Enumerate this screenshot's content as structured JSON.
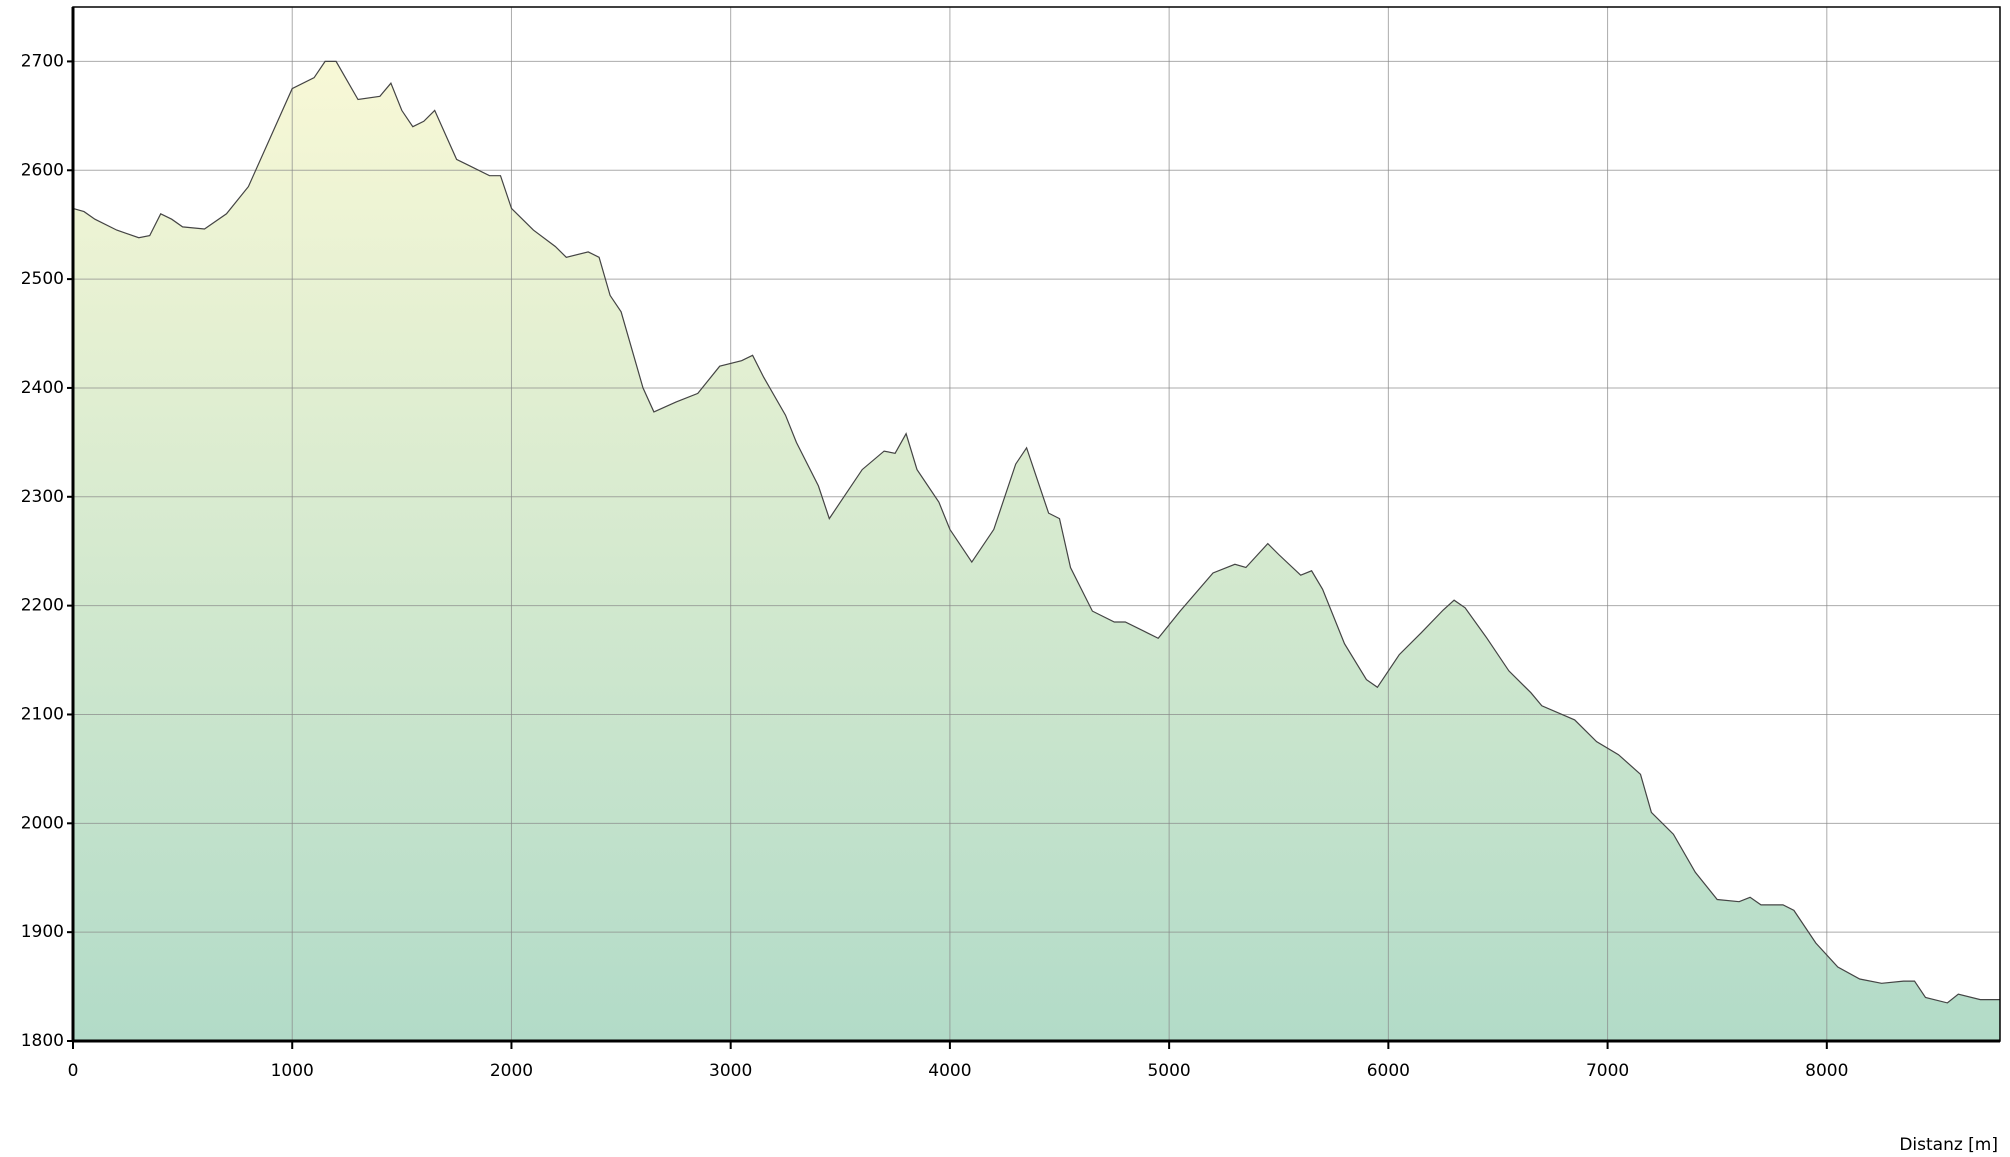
{
  "chart_data": {
    "type": "area",
    "x_label": "Distanz [m]",
    "x": [
      0,
      50,
      100,
      200,
      300,
      350,
      400,
      450,
      500,
      600,
      700,
      800,
      900,
      1000,
      1100,
      1150,
      1200,
      1300,
      1400,
      1450,
      1500,
      1550,
      1600,
      1650,
      1750,
      1800,
      1900,
      1950,
      2000,
      2100,
      2200,
      2250,
      2350,
      2400,
      2450,
      2500,
      2600,
      2650,
      2750,
      2850,
      2950,
      3050,
      3100,
      3150,
      3250,
      3300,
      3400,
      3450,
      3500,
      3600,
      3700,
      3750,
      3800,
      3850,
      3950,
      4000,
      4100,
      4200,
      4300,
      4350,
      4450,
      4500,
      4550,
      4650,
      4750,
      4800,
      4900,
      4950,
      5050,
      5200,
      5300,
      5350,
      5450,
      5500,
      5600,
      5650,
      5700,
      5800,
      5900,
      5950,
      6050,
      6150,
      6250,
      6300,
      6350,
      6450,
      6550,
      6650,
      6700,
      6850,
      6950,
      7050,
      7150,
      7200,
      7300,
      7400,
      7500,
      7600,
      7650,
      7700,
      7800,
      7850,
      7950,
      8050,
      8150,
      8250,
      8350,
      8400,
      8450,
      8550,
      8600,
      8700,
      8790
    ],
    "values": [
      2565,
      2562,
      2555,
      2545,
      2538,
      2540,
      2560,
      2555,
      2548,
      2546,
      2560,
      2585,
      2630,
      2675,
      2685,
      2700,
      2700,
      2665,
      2668,
      2680,
      2655,
      2640,
      2645,
      2655,
      2610,
      2605,
      2595,
      2595,
      2565,
      2545,
      2530,
      2520,
      2525,
      2520,
      2485,
      2470,
      2400,
      2378,
      2387,
      2395,
      2420,
      2425,
      2430,
      2410,
      2375,
      2350,
      2310,
      2280,
      2295,
      2325,
      2342,
      2340,
      2358,
      2325,
      2295,
      2270,
      2240,
      2270,
      2330,
      2345,
      2285,
      2280,
      2235,
      2195,
      2185,
      2185,
      2175,
      2170,
      2195,
      2230,
      2238,
      2235,
      2257,
      2247,
      2228,
      2232,
      2215,
      2165,
      2132,
      2125,
      2155,
      2175,
      2196,
      2205,
      2198,
      2170,
      2140,
      2120,
      2108,
      2095,
      2075,
      2063,
      2045,
      2010,
      1990,
      1955,
      1930,
      1928,
      1932,
      1925,
      1925,
      1920,
      1890,
      1868,
      1857,
      1853,
      1855,
      1855,
      1840,
      1835,
      1843,
      1838,
      1838
    ],
    "line_color": "#444444",
    "fill_colors": [
      "#f8f8d6",
      "#b2dbc8"
    ],
    "xlim": [
      0,
      8790
    ],
    "xticks": [
      0,
      1000,
      2000,
      3000,
      4000,
      5000,
      6000,
      7000,
      8000
    ],
    "ylim": [
      1800,
      2750
    ],
    "yticks": [
      1800,
      1900,
      2000,
      2100,
      2200,
      2300,
      2400,
      2500,
      2600,
      2700
    ],
    "grid": true
  }
}
